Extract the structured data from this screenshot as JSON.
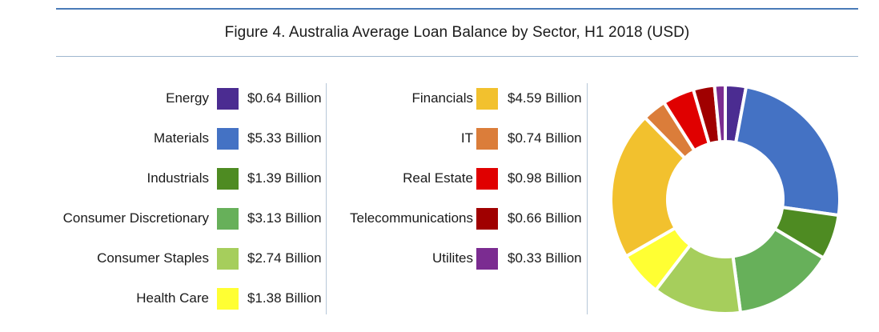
{
  "header": {
    "title": "Figure 4. Australia  Average Loan Balance by Sector, H1 2018 (USD)"
  },
  "legend": {
    "left": [
      {
        "label": "Energy",
        "value": "$0.64 Billion",
        "color": "#4B2C91"
      },
      {
        "label": "Materials",
        "value": "$5.33 Billion",
        "color": "#4472C4"
      },
      {
        "label": "Industrials",
        "value": "$1.39 Billion",
        "color": "#4E8B22"
      },
      {
        "label": "Consumer Discretionary",
        "value": "$3.13 Billion",
        "color": "#67B05A"
      },
      {
        "label": "Consumer Staples",
        "value": "$2.74 Billion",
        "color": "#A6CE5C"
      },
      {
        "label": "Health Care",
        "value": "$1.38 Billion",
        "color": "#FFFF33"
      }
    ],
    "right": [
      {
        "label": "Financials",
        "value": "$4.59 Billion",
        "color": "#F2C12E"
      },
      {
        "label": "IT",
        "value": "$0.74 Billion",
        "color": "#DB7D3A"
      },
      {
        "label": "Real Estate",
        "value": "$0.98 Billion",
        "color": "#E00000"
      },
      {
        "label": "Telecommunications",
        "value": "$0.66 Billion",
        "color": "#A00000"
      },
      {
        "label": "Utilites",
        "value": "$0.33 Billion",
        "color": "#7B2C91"
      }
    ]
  },
  "chart_data": {
    "type": "pie",
    "variant": "donut",
    "title": "Figure 4. Australia  Average Loan Balance by Sector, H1 2018 (USD)",
    "unit": "Billion USD",
    "start_angle_deg": 0,
    "direction": "clockwise",
    "slices": [
      {
        "label": "Energy",
        "value": 0.64,
        "color": "#4B2C91"
      },
      {
        "label": "Materials",
        "value": 5.33,
        "color": "#4472C4"
      },
      {
        "label": "Industrials",
        "value": 1.39,
        "color": "#4E8B22"
      },
      {
        "label": "Consumer Discretionary",
        "value": 3.13,
        "color": "#67B05A"
      },
      {
        "label": "Consumer Staples",
        "value": 2.74,
        "color": "#A6CE5C"
      },
      {
        "label": "Health Care",
        "value": 1.38,
        "color": "#FFFF33"
      },
      {
        "label": "Financials",
        "value": 4.59,
        "color": "#F2C12E"
      },
      {
        "label": "IT",
        "value": 0.74,
        "color": "#DB7D3A"
      },
      {
        "label": "Real Estate",
        "value": 0.98,
        "color": "#E00000"
      },
      {
        "label": "Telecommunications",
        "value": 0.66,
        "color": "#A00000"
      },
      {
        "label": "Utilites",
        "value": 0.33,
        "color": "#7B2C91"
      }
    ]
  }
}
